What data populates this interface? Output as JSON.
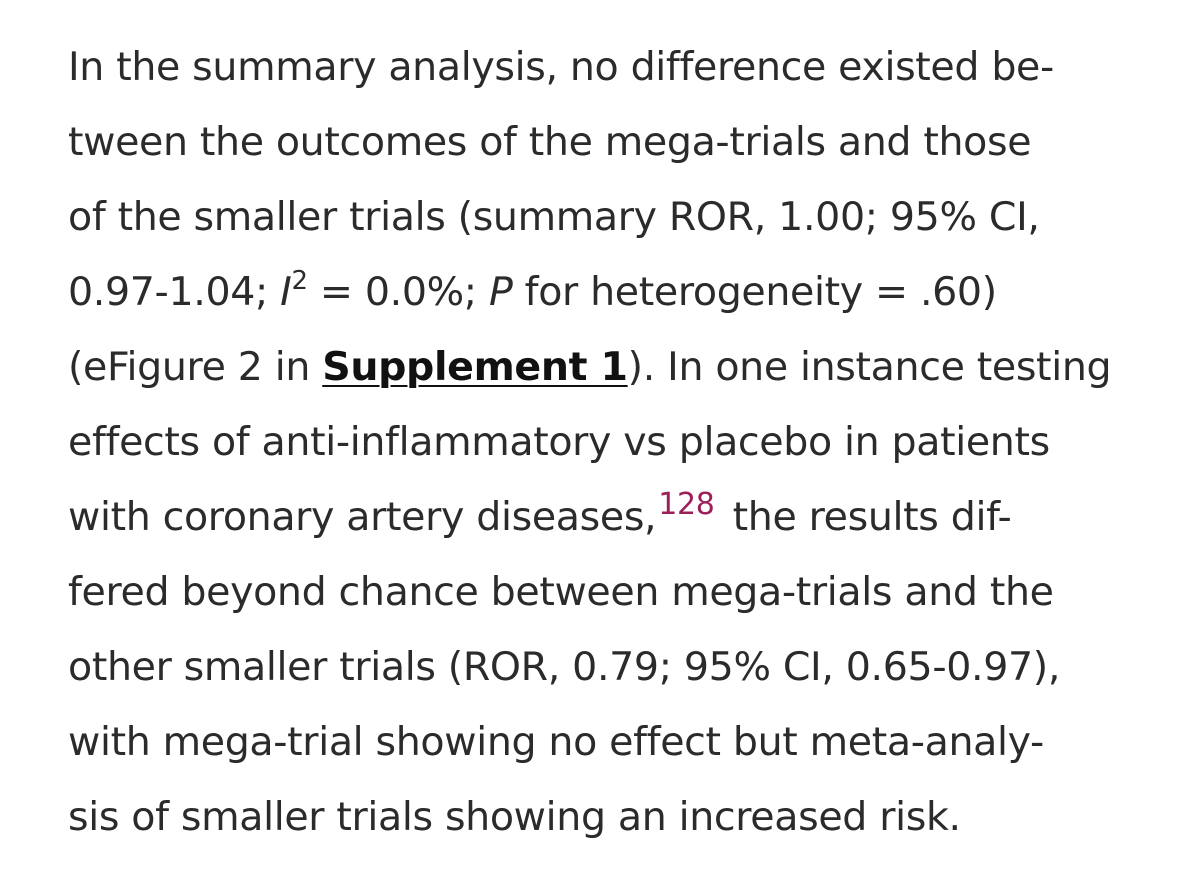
{
  "paragraph": {
    "l1": "In the summary analysis, no difference existed be-",
    "l2": "tween the outcomes of the mega-trials and those",
    "l3": "of the smaller trials (summary ROR, 1.00; 95% CI,",
    "l4a": "0.97-1.04; ",
    "l4_i": "I",
    "l4_sup": "2",
    "l4b": " = 0.0%; ",
    "l4_p": "P",
    "l4c": " for heterogeneity = .60)",
    "l5a": "(eFigure 2 in ",
    "supplement_link": "Supplement 1",
    "l5b": "). In one instance testing",
    "l6": "effects of anti-inflammatory vs placebo in patients",
    "l7a": "with coronary artery diseases,",
    "citation": "128",
    "l7b": " the results dif-",
    "l8": "fered beyond chance between mega-trials and the",
    "l9": "other smaller trials (ROR, 0.79; 95% CI, 0.65-0.97),",
    "l10": "with mega-trial showing no effect but meta-analy-",
    "l11": "sis of smaller trials showing an increased risk."
  },
  "colors": {
    "text": "#2b2b2b",
    "citation": "#9c1f5a",
    "link": "#111111"
  }
}
